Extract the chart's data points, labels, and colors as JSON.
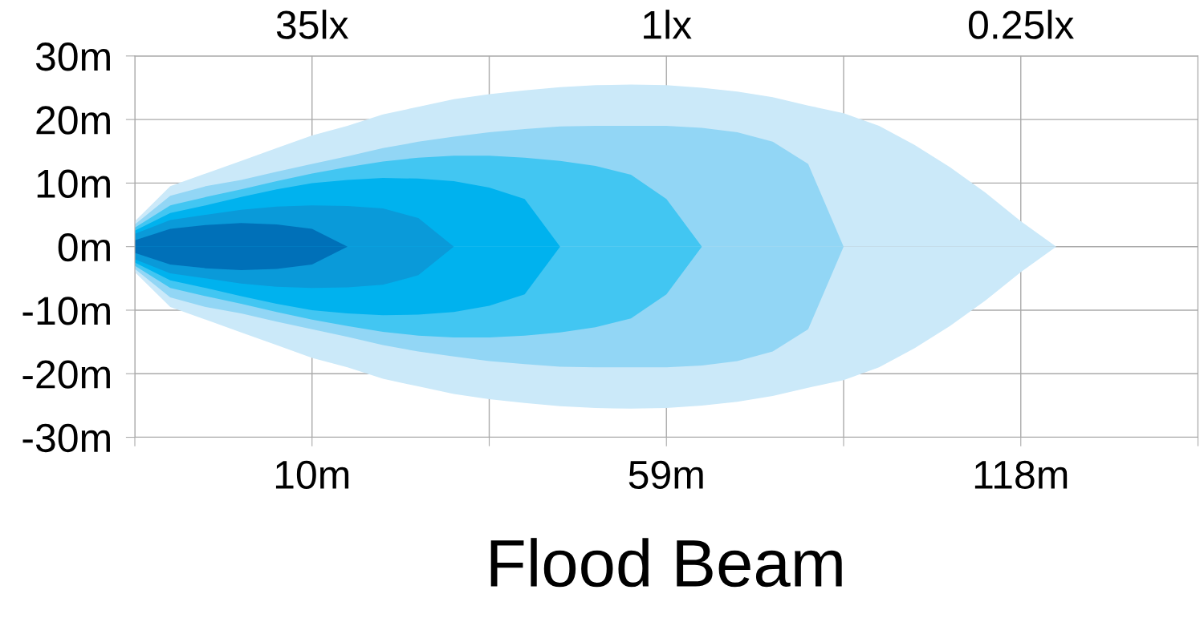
{
  "chart_data": {
    "type": "area",
    "title": "Flood Beam",
    "categories": [
      null,
      null,
      null,
      null,
      null,
      "10m",
      null,
      null,
      null,
      null,
      null,
      null,
      null,
      null,
      null,
      "59m",
      null,
      null,
      null,
      null,
      null,
      null,
      null,
      null,
      null,
      "118m",
      null,
      null,
      null,
      null,
      null
    ],
    "ylim": [
      -30,
      30
    ],
    "yticks": [
      {
        "value": -30,
        "label": "-30m"
      },
      {
        "value": -20,
        "label": "-20m"
      },
      {
        "value": -10,
        "label": "-10m"
      },
      {
        "value": 0,
        "label": "0m"
      },
      {
        "value": 10,
        "label": "10m"
      },
      {
        "value": 20,
        "label": "20m"
      },
      {
        "value": 30,
        "label": "30m"
      }
    ],
    "grid": true,
    "annotations": [
      "35lx",
      "1lx",
      "0.25lx"
    ],
    "series": [
      {
        "color": "#cbe9f9",
        "values": [
          4,
          9.5,
          11.5,
          13.5,
          15.5,
          17.5,
          19,
          20.8,
          22,
          23.2,
          24,
          24.6,
          25.1,
          25.4,
          25.5,
          25.4,
          25,
          24.4,
          23.5,
          22.2,
          21,
          19,
          16,
          12.5,
          8.5,
          4,
          0,
          null,
          null,
          null,
          null
        ]
      },
      {
        "color": "#cbe9f9",
        "values": [
          -4,
          -9.5,
          -11.5,
          -13.5,
          -15.5,
          -17.5,
          -19,
          -20.8,
          -22,
          -23.2,
          -24,
          -24.6,
          -25.1,
          -25.4,
          -25.5,
          -25.4,
          -25,
          -24.4,
          -23.5,
          -22.2,
          -21,
          -19,
          -16,
          -12.5,
          -8.5,
          -4,
          0,
          null,
          null,
          null,
          null
        ]
      },
      {
        "color": "#92d6f5",
        "values": [
          3.5,
          8,
          9.5,
          10.5,
          11.8,
          13,
          14.2,
          15.5,
          16.5,
          17.3,
          18,
          18.5,
          18.9,
          19,
          19,
          19,
          18.7,
          18,
          16.5,
          13,
          0,
          null,
          null,
          null,
          null,
          null,
          null,
          null,
          null,
          null,
          null
        ]
      },
      {
        "color": "#92d6f5",
        "values": [
          -3.5,
          -8,
          -9.5,
          -10.5,
          -11.8,
          -13,
          -14.2,
          -15.5,
          -16.5,
          -17.3,
          -18,
          -18.5,
          -18.9,
          -19,
          -19,
          -19,
          -18.7,
          -18,
          -16.5,
          -13,
          0,
          null,
          null,
          null,
          null,
          null,
          null,
          null,
          null,
          null,
          null
        ]
      },
      {
        "color": "#42c6f2",
        "values": [
          3,
          6.5,
          7.8,
          9,
          10.3,
          11.5,
          12.5,
          13.4,
          14,
          14.3,
          14.3,
          14,
          13.5,
          12.7,
          11.3,
          7.5,
          0,
          null,
          null,
          null,
          null,
          null,
          null,
          null,
          null,
          null,
          null,
          null,
          null,
          null,
          null
        ]
      },
      {
        "color": "#42c6f2",
        "values": [
          -3,
          -6.5,
          -7.8,
          -9,
          -10.3,
          -11.5,
          -12.5,
          -13.4,
          -14,
          -14.3,
          -14.3,
          -14,
          -13.5,
          -12.7,
          -11.3,
          -7.5,
          0,
          null,
          null,
          null,
          null,
          null,
          null,
          null,
          null,
          null,
          null,
          null,
          null,
          null,
          null
        ]
      },
      {
        "color": "#00b2ee",
        "values": [
          2.5,
          5.3,
          6.5,
          7.8,
          9,
          10,
          10.5,
          10.8,
          10.7,
          10.3,
          9.3,
          7.5,
          0,
          null,
          null,
          null,
          null,
          null,
          null,
          null,
          null,
          null,
          null,
          null,
          null,
          null,
          null,
          null,
          null,
          null,
          null
        ]
      },
      {
        "color": "#00b2ee",
        "values": [
          -2.5,
          -5.3,
          -6.5,
          -7.8,
          -9,
          -10,
          -10.5,
          -10.8,
          -10.7,
          -10.3,
          -9.3,
          -7.5,
          0,
          null,
          null,
          null,
          null,
          null,
          null,
          null,
          null,
          null,
          null,
          null,
          null,
          null,
          null,
          null,
          null,
          null,
          null
        ]
      },
      {
        "color": "#0a9ad9",
        "values": [
          2,
          4.2,
          5,
          5.8,
          6.3,
          6.5,
          6.4,
          6,
          4.5,
          0,
          null,
          null,
          null,
          null,
          null,
          null,
          null,
          null,
          null,
          null,
          null,
          null,
          null,
          null,
          null,
          null,
          null,
          null,
          null,
          null,
          null
        ]
      },
      {
        "color": "#0a9ad9",
        "values": [
          -2,
          -4.2,
          -5,
          -5.8,
          -6.3,
          -6.5,
          -6.4,
          -6,
          -4.5,
          0,
          null,
          null,
          null,
          null,
          null,
          null,
          null,
          null,
          null,
          null,
          null,
          null,
          null,
          null,
          null,
          null,
          null,
          null,
          null,
          null,
          null
        ]
      },
      {
        "color": "#0070b8",
        "values": [
          1,
          2.8,
          3.4,
          3.7,
          3.5,
          2.8,
          0,
          null,
          null,
          null,
          null,
          null,
          null,
          null,
          null,
          null,
          null,
          null,
          null,
          null,
          null,
          null,
          null,
          null,
          null,
          null,
          null,
          null,
          null,
          null,
          null
        ]
      },
      {
        "color": "#0070b8",
        "values": [
          -1,
          -2.8,
          -3.4,
          -3.7,
          -3.5,
          -2.8,
          0,
          null,
          null,
          null,
          null,
          null,
          null,
          null,
          null,
          null,
          null,
          null,
          null,
          null,
          null,
          null,
          null,
          null,
          null,
          null,
          null,
          null,
          null,
          null,
          null
        ]
      }
    ]
  }
}
